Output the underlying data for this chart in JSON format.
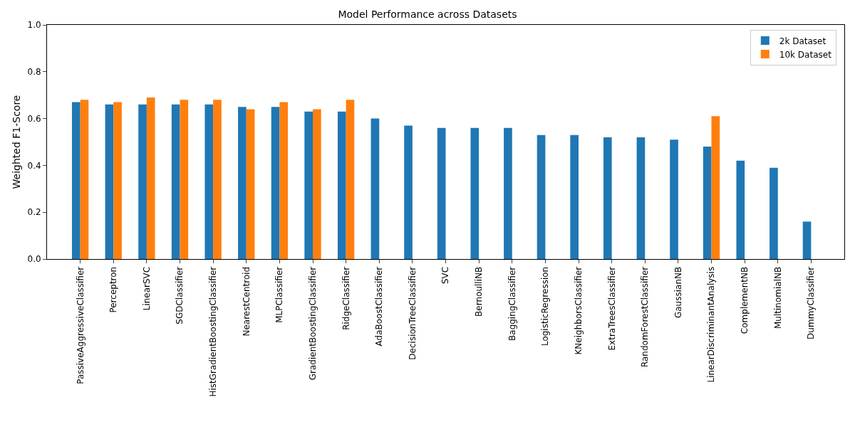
{
  "chart_data": {
    "type": "bar",
    "title": "Model Performance across Datasets",
    "ylabel": "Weighted F1-Score",
    "categories": [
      "PassiveAggressiveClassifier",
      "Perceptron",
      "LinearSVC",
      "SGDClassifier",
      "HistGradientBoostingClassifier",
      "NearestCentroid",
      "MLPClassifier",
      "GradientBoostingClassifier",
      "RidgeClassifier",
      "AdaBoostClassifier",
      "DecisionTreeClassifier",
      "SVC",
      "BernoulliNB",
      "BaggingClassifier",
      "LogisticRegression",
      "KNeighborsClassifier",
      "ExtraTreesClassifier",
      "RandomForestClassifier",
      "GaussianNB",
      "LinearDiscriminantAnalysis",
      "ComplementNB",
      "MultinomialNB",
      "DummyClassifier"
    ],
    "series": [
      {
        "name": "2k Dataset",
        "color": "#1f77b4",
        "values": [
          0.67,
          0.66,
          0.66,
          0.66,
          0.66,
          0.65,
          0.65,
          0.63,
          0.63,
          0.6,
          0.57,
          0.56,
          0.56,
          0.56,
          0.53,
          0.53,
          0.52,
          0.52,
          0.51,
          0.48,
          0.42,
          0.39,
          0.16
        ]
      },
      {
        "name": "10k Dataset",
        "color": "#ff7f0e",
        "values": [
          0.68,
          0.67,
          0.69,
          0.68,
          0.68,
          0.64,
          0.67,
          0.64,
          0.68,
          null,
          null,
          null,
          null,
          null,
          null,
          null,
          null,
          null,
          null,
          0.61,
          null,
          null,
          null
        ]
      }
    ],
    "ylim": [
      0,
      1
    ],
    "yticks": [
      {
        "value": 0,
        "label": "0.0"
      },
      {
        "value": 0.2,
        "label": "0.2"
      },
      {
        "value": 0.4,
        "label": "0.4"
      },
      {
        "value": 0.6,
        "label": "0.6"
      },
      {
        "value": 0.8,
        "label": "0.8"
      },
      {
        "value": 1,
        "label": "1.0"
      }
    ],
    "grid": false,
    "legend": "top right"
  }
}
